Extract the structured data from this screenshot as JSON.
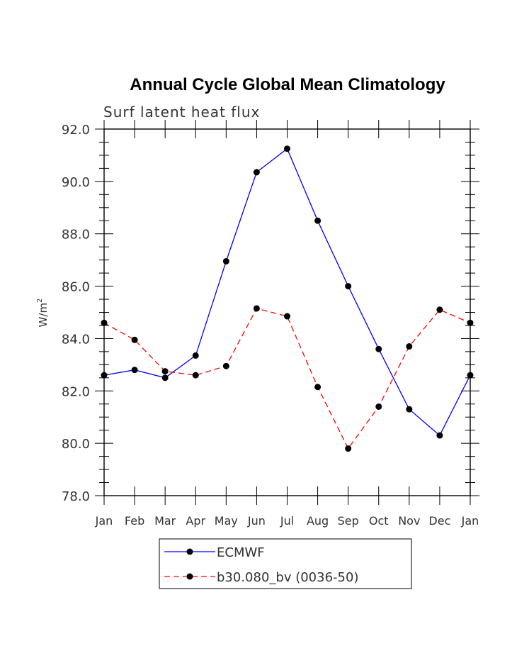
{
  "chart_data": {
    "type": "line",
    "title": "Annual Cycle Global Mean Climatology",
    "subtitle": "Surf latent heat flux",
    "ylabel": "W/m",
    "ylabel_superscript": "2",
    "xlabel": "",
    "ylim": [
      78.0,
      92.0
    ],
    "yticks": [
      "78.0",
      "80.0",
      "82.0",
      "84.0",
      "86.0",
      "88.0",
      "90.0",
      "92.0"
    ],
    "categories": [
      "Jan",
      "Feb",
      "Mar",
      "Apr",
      "May",
      "Jun",
      "Jul",
      "Aug",
      "Sep",
      "Oct",
      "Nov",
      "Dec",
      "Jan"
    ],
    "series": [
      {
        "name": "ECMWF",
        "color": "#0000ff",
        "dash": "solid",
        "values": [
          82.6,
          82.8,
          82.5,
          83.35,
          86.95,
          90.35,
          91.25,
          88.5,
          86.0,
          83.6,
          81.3,
          80.3,
          82.6
        ]
      },
      {
        "name": "b30.080_bv (0036-50)",
        "color": "#ff0000",
        "dash": "dashed",
        "values": [
          84.6,
          83.95,
          82.75,
          82.6,
          82.95,
          85.15,
          84.85,
          82.15,
          79.8,
          81.4,
          83.7,
          85.1,
          84.6
        ]
      }
    ],
    "legend_position": "bottom-center",
    "grid": false
  }
}
